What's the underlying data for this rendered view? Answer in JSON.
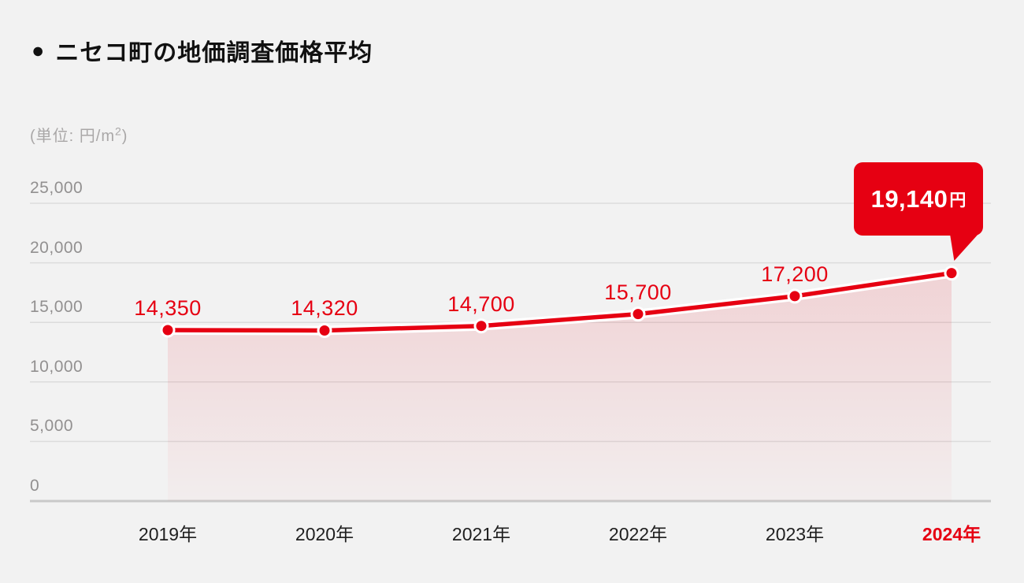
{
  "header": {
    "bullet": "●",
    "title": "ニセコ町の地価調査価格平均"
  },
  "unit": {
    "prefix": "(単位: 円/m",
    "sup": "2",
    "suffix": ")"
  },
  "callout": {
    "value": "19,140",
    "unit": "円"
  },
  "chart_data": {
    "type": "area",
    "title": "ニセコ町の地価調査価格平均",
    "unit_label": "(単位: 円/m2)",
    "categories": [
      "2019年",
      "2020年",
      "2021年",
      "2022年",
      "2023年",
      "2024年"
    ],
    "values": [
      14350,
      14320,
      14700,
      15700,
      17200,
      19140
    ],
    "point_labels": [
      "14,350",
      "14,320",
      "14,700",
      "15,700",
      "17,200",
      "19,140円"
    ],
    "highlight_index": 5,
    "highlight_callout": "19,140円",
    "series_name": "地価調査価格平均",
    "xlabel": "",
    "ylabel": "円/m2",
    "ylim": [
      0,
      25000
    ],
    "y_ticks": [
      {
        "value": 0,
        "label": "0"
      },
      {
        "value": 5000,
        "label": "5,000"
      },
      {
        "value": 10000,
        "label": "10,000"
      },
      {
        "value": 15000,
        "label": "15,000"
      },
      {
        "value": 20000,
        "label": "20,000"
      },
      {
        "value": 25000,
        "label": "25,000"
      }
    ],
    "grid": true,
    "legend": "none",
    "colors": {
      "accent": "#e60012",
      "background": "#f2f2f2",
      "gridline": "#dcdcdc",
      "baseline": "#c9c9c9",
      "axis_text": "#929090",
      "x_label_text": "#1f1f1f",
      "point_halo": "#ffffff",
      "callout_bg": "#e60012",
      "callout_text": "#ffffff"
    }
  }
}
